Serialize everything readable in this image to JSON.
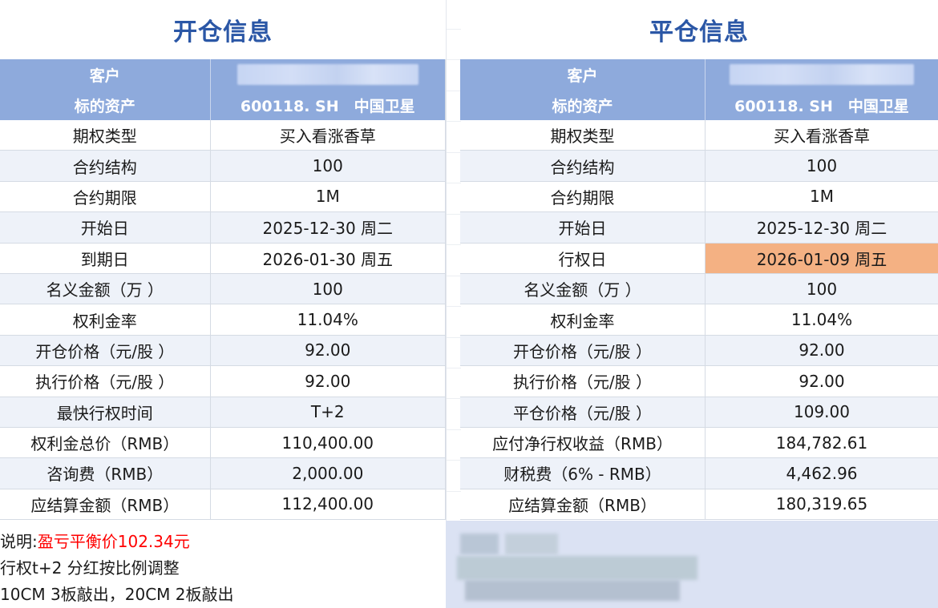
{
  "open_panel": {
    "title": "开仓信息",
    "header": {
      "client_label": "客户",
      "asset_label": "标的资产",
      "asset_value": "600118. SH　中国卫星"
    },
    "rows": [
      {
        "label": "期权类型",
        "value": "买入看涨香草"
      },
      {
        "label": "合约结构",
        "value": "100"
      },
      {
        "label": "合约期限",
        "value": "1M"
      },
      {
        "label": "开始日",
        "value": "2025-12-30 周二"
      },
      {
        "label": "到期日",
        "value": "2026-01-30 周五"
      },
      {
        "label": "名义金额（万 ）",
        "value": "100"
      },
      {
        "label": "权利金率",
        "value": "11.04%"
      },
      {
        "label": "开仓价格（元/股 ）",
        "value": "92.00"
      },
      {
        "label": "执行价格（元/股 ）",
        "value": "92.00"
      },
      {
        "label": "最快行权时间",
        "value": "T+2"
      },
      {
        "label": "权利金总价（RMB）",
        "value": "110,400.00"
      },
      {
        "label": "咨询费（RMB）",
        "value": "2,000.00"
      },
      {
        "label": "应结算金额（RMB）",
        "value": "112,400.00"
      }
    ]
  },
  "close_panel": {
    "title": "平仓信息",
    "header": {
      "client_label": "客户",
      "asset_label": "标的资产",
      "asset_value": "600118. SH　中国卫星"
    },
    "rows": [
      {
        "label": "期权类型",
        "value": "买入看涨香草"
      },
      {
        "label": "合约结构",
        "value": "100"
      },
      {
        "label": "合约期限",
        "value": "1M"
      },
      {
        "label": "开始日",
        "value": "2025-12-30 周二"
      },
      {
        "label": "行权日",
        "value": "2026-01-09 周五"
      },
      {
        "label": "名义金额（万 ）",
        "value": "100"
      },
      {
        "label": "权利金率",
        "value": "11.04%"
      },
      {
        "label": "开仓价格（元/股 ）",
        "value": "92.00"
      },
      {
        "label": "执行价格（元/股 ）",
        "value": "92.00"
      },
      {
        "label": "平仓价格（元/股 ）",
        "value": "109.00"
      },
      {
        "label": "应付净行权收益（RMB）",
        "value": "184,782.61"
      },
      {
        "label": "财税费（6% - RMB）",
        "value": "4,462.96"
      },
      {
        "label": "应结算金额（RMB）",
        "value": "180,319.65"
      }
    ],
    "highlight_color": "#f4b183"
  },
  "notes": {
    "prefix": "说明:",
    "breakeven": "盈亏平衡价102.34元",
    "line2": "行权t+2 分红按比例调整",
    "line3": "10CM 3板敲出，20CM 2板敲出"
  },
  "colors": {
    "title": "#2b57a6",
    "header_bg": "#8eaadc",
    "alt_row": "#eef2f9",
    "note_red": "#ff0000"
  }
}
